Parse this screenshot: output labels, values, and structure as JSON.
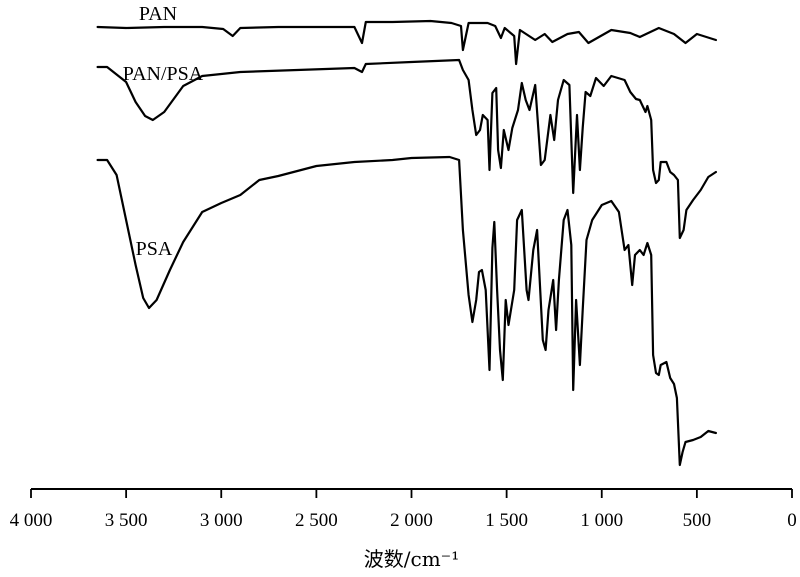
{
  "chart_data": {
    "type": "line",
    "title": "",
    "xlabel": "波数/cm⁻¹",
    "ylabel": "",
    "x_reversed": true,
    "xlim": [
      4000,
      0
    ],
    "x_ticks": [
      4000,
      3500,
      3000,
      2500,
      2000,
      1500,
      1000,
      500,
      0
    ],
    "x_tick_labels": [
      "4 000",
      "3 500",
      "3 000",
      "2 500",
      "2 000",
      "1 500",
      "1 000",
      "500",
      "0"
    ],
    "y_axis_shown": false,
    "grid": false,
    "legend": "inline labels",
    "series": [
      {
        "name": "PAN",
        "points": [
          [
            3650,
            27
          ],
          [
            3500,
            28
          ],
          [
            3300,
            27
          ],
          [
            3100,
            27
          ],
          [
            2990,
            29
          ],
          [
            2940,
            36
          ],
          [
            2900,
            28
          ],
          [
            2700,
            27
          ],
          [
            2300,
            27
          ],
          [
            2260,
            43
          ],
          [
            2240,
            22
          ],
          [
            2100,
            22
          ],
          [
            1900,
            21
          ],
          [
            1790,
            23
          ],
          [
            1740,
            26
          ],
          [
            1730,
            50
          ],
          [
            1700,
            23
          ],
          [
            1600,
            23
          ],
          [
            1560,
            26
          ],
          [
            1530,
            38
          ],
          [
            1510,
            28
          ],
          [
            1460,
            36
          ],
          [
            1450,
            64
          ],
          [
            1430,
            30
          ],
          [
            1350,
            40
          ],
          [
            1300,
            34
          ],
          [
            1260,
            42
          ],
          [
            1180,
            34
          ],
          [
            1120,
            32
          ],
          [
            1070,
            43
          ],
          [
            950,
            30
          ],
          [
            850,
            33
          ],
          [
            800,
            37
          ],
          [
            700,
            28
          ],
          [
            620,
            34
          ],
          [
            560,
            43
          ],
          [
            500,
            34
          ],
          [
            400,
            40
          ]
        ]
      },
      {
        "name": "PAN/PSA",
        "points": [
          [
            3650,
            67
          ],
          [
            3600,
            67
          ],
          [
            3500,
            82
          ],
          [
            3450,
            102
          ],
          [
            3400,
            116
          ],
          [
            3360,
            120
          ],
          [
            3300,
            112
          ],
          [
            3200,
            86
          ],
          [
            3100,
            76
          ],
          [
            3000,
            74
          ],
          [
            2900,
            72
          ],
          [
            2600,
            70
          ],
          [
            2300,
            68
          ],
          [
            2260,
            72
          ],
          [
            2240,
            64
          ],
          [
            2000,
            62
          ],
          [
            1750,
            60
          ],
          [
            1730,
            70
          ],
          [
            1700,
            80
          ],
          [
            1680,
            110
          ],
          [
            1660,
            135
          ],
          [
            1640,
            130
          ],
          [
            1625,
            115
          ],
          [
            1600,
            120
          ],
          [
            1590,
            170
          ],
          [
            1575,
            93
          ],
          [
            1555,
            88
          ],
          [
            1545,
            150
          ],
          [
            1530,
            168
          ],
          [
            1515,
            130
          ],
          [
            1490,
            150
          ],
          [
            1470,
            128
          ],
          [
            1440,
            110
          ],
          [
            1420,
            83
          ],
          [
            1400,
            100
          ],
          [
            1380,
            110
          ],
          [
            1350,
            85
          ],
          [
            1320,
            165
          ],
          [
            1300,
            160
          ],
          [
            1270,
            115
          ],
          [
            1250,
            140
          ],
          [
            1230,
            100
          ],
          [
            1200,
            80
          ],
          [
            1170,
            85
          ],
          [
            1150,
            193
          ],
          [
            1130,
            115
          ],
          [
            1115,
            170
          ],
          [
            1100,
            128
          ],
          [
            1085,
            92
          ],
          [
            1060,
            96
          ],
          [
            1030,
            78
          ],
          [
            1010,
            82
          ],
          [
            990,
            86
          ],
          [
            950,
            76
          ],
          [
            880,
            80
          ],
          [
            850,
            92
          ],
          [
            820,
            99
          ],
          [
            800,
            100
          ],
          [
            780,
            108
          ],
          [
            770,
            112
          ],
          [
            760,
            106
          ],
          [
            740,
            120
          ],
          [
            730,
            170
          ],
          [
            715,
            183
          ],
          [
            700,
            180
          ],
          [
            690,
            162
          ],
          [
            660,
            162
          ],
          [
            640,
            172
          ],
          [
            620,
            175
          ],
          [
            600,
            180
          ],
          [
            590,
            238
          ],
          [
            570,
            230
          ],
          [
            555,
            210
          ],
          [
            520,
            200
          ],
          [
            480,
            190
          ],
          [
            440,
            177
          ],
          [
            400,
            172
          ]
        ]
      },
      {
        "name": "PSA",
        "points": [
          [
            3650,
            160
          ],
          [
            3600,
            160
          ],
          [
            3550,
            175
          ],
          [
            3500,
            220
          ],
          [
            3450,
            265
          ],
          [
            3410,
            298
          ],
          [
            3380,
            308
          ],
          [
            3340,
            300
          ],
          [
            3270,
            270
          ],
          [
            3200,
            242
          ],
          [
            3100,
            212
          ],
          [
            3000,
            203
          ],
          [
            2950,
            199
          ],
          [
            2900,
            195
          ],
          [
            2800,
            180
          ],
          [
            2700,
            176
          ],
          [
            2500,
            166
          ],
          [
            2300,
            162
          ],
          [
            2100,
            160
          ],
          [
            2000,
            158
          ],
          [
            1800,
            157
          ],
          [
            1750,
            160
          ],
          [
            1730,
            230
          ],
          [
            1700,
            295
          ],
          [
            1680,
            322
          ],
          [
            1660,
            300
          ],
          [
            1645,
            272
          ],
          [
            1630,
            270
          ],
          [
            1610,
            290
          ],
          [
            1590,
            370
          ],
          [
            1575,
            248
          ],
          [
            1565,
            222
          ],
          [
            1550,
            290
          ],
          [
            1535,
            350
          ],
          [
            1520,
            380
          ],
          [
            1505,
            300
          ],
          [
            1490,
            325
          ],
          [
            1460,
            290
          ],
          [
            1445,
            220
          ],
          [
            1420,
            210
          ],
          [
            1395,
            290
          ],
          [
            1385,
            300
          ],
          [
            1360,
            250
          ],
          [
            1340,
            230
          ],
          [
            1310,
            340
          ],
          [
            1295,
            350
          ],
          [
            1280,
            310
          ],
          [
            1255,
            280
          ],
          [
            1240,
            330
          ],
          [
            1225,
            280
          ],
          [
            1200,
            220
          ],
          [
            1180,
            210
          ],
          [
            1160,
            245
          ],
          [
            1150,
            390
          ],
          [
            1135,
            300
          ],
          [
            1115,
            365
          ],
          [
            1100,
            310
          ],
          [
            1080,
            240
          ],
          [
            1050,
            220
          ],
          [
            1000,
            205
          ],
          [
            950,
            201
          ],
          [
            910,
            212
          ],
          [
            880,
            250
          ],
          [
            860,
            245
          ],
          [
            840,
            285
          ],
          [
            825,
            255
          ],
          [
            800,
            250
          ],
          [
            780,
            255
          ],
          [
            760,
            243
          ],
          [
            740,
            255
          ],
          [
            730,
            355
          ],
          [
            715,
            373
          ],
          [
            700,
            375
          ],
          [
            690,
            365
          ],
          [
            660,
            362
          ],
          [
            640,
            378
          ],
          [
            620,
            384
          ],
          [
            605,
            398
          ],
          [
            590,
            465
          ],
          [
            575,
            452
          ],
          [
            560,
            442
          ],
          [
            520,
            440
          ],
          [
            480,
            437
          ],
          [
            440,
            431
          ],
          [
            400,
            433
          ]
        ]
      }
    ]
  }
}
